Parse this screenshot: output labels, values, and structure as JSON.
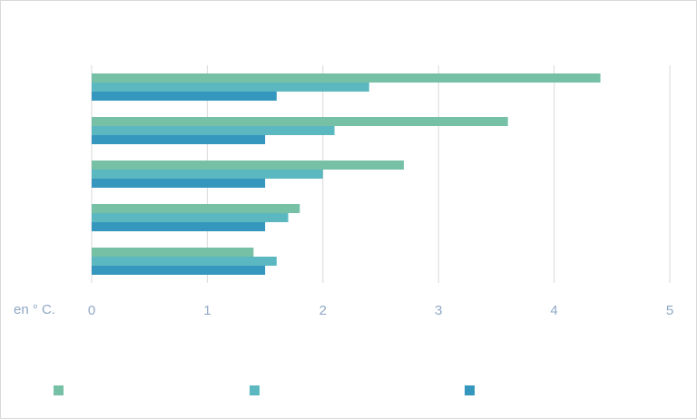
{
  "chart_data": {
    "type": "bar",
    "orientation": "horizontal",
    "title": "",
    "xlabel": "en ° C.",
    "ylabel": "",
    "xlim": [
      0,
      5
    ],
    "x_ticks": [
      "0",
      "1",
      "2",
      "3",
      "4",
      "5"
    ],
    "grid": "vertical",
    "legend": "bottom",
    "categories": [
      "",
      "",
      "",
      "",
      ""
    ],
    "series": [
      {
        "color": "#76c0a6",
        "values": [
          4.4,
          3.6,
          2.7,
          1.8,
          1.4
        ]
      },
      {
        "color": "#5bb8c0",
        "values": [
          2.4,
          2.1,
          2.0,
          1.7,
          1.6
        ]
      },
      {
        "color": "#3596be",
        "values": [
          1.6,
          1.5,
          1.5,
          1.5,
          1.5
        ]
      }
    ]
  }
}
